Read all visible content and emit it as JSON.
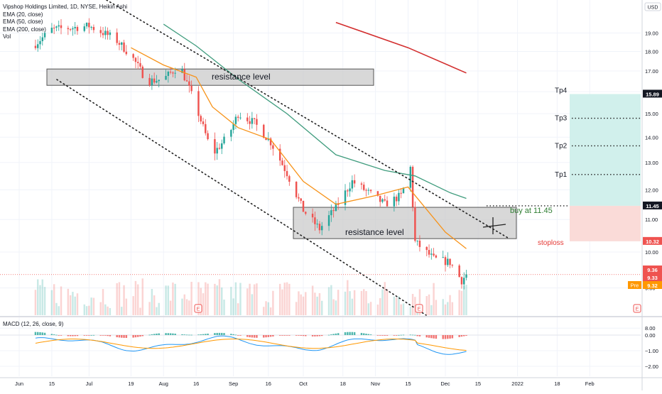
{
  "legend": {
    "title": "Vipshop Holdings Limited, 1D, NYSE, Heikin Ashi",
    "ema20": "EMA (20, close)",
    "ema50": "EMA (50, close)",
    "ema200": "EMA (200, close)",
    "vol": "Vol"
  },
  "macd_legend": "MACD (12, 26, close, 9)",
  "currency": "USD",
  "annotations": {
    "resistance_top": "resistance level",
    "resistance_bottom": "resistance level",
    "buy": "buy at  11.45",
    "stoploss": "stoploss",
    "tp1": "Tp1",
    "tp2": "Tp2",
    "tp3": "Tp3",
    "tp4": "Tp4"
  },
  "price_badges": {
    "tp4": "15.89",
    "buy": "11.45",
    "stop": "10.32",
    "last": "9.36",
    "prev": "9.33",
    "pre_label": "Pre",
    "pre": "9.32"
  },
  "earnings_marker": "E",
  "colors": {
    "up": "#26a69a",
    "down": "#ef5350",
    "ema20": "#f7931a",
    "ema50": "#3f9c7d",
    "ema200": "#d32f2f",
    "target_zone": "#d1f0ec",
    "stop_zone": "#fadbd8",
    "macd_line": "#2196f3",
    "signal_line": "#ff9800"
  },
  "chart_data": [
    {
      "type": "candlestick",
      "title": "Vipshop Holdings Limited, 1D, NYSE, Heikin Ashi",
      "x_ticks": [
        "Jun",
        "15",
        "Jul",
        "19",
        "Aug",
        "16",
        "Sep",
        "16",
        "Oct",
        "18",
        "Nov",
        "15",
        "Dec",
        "15",
        "2022",
        "18",
        "Feb"
      ],
      "y_ticks": [
        8.0,
        9.0,
        10.0,
        11.0,
        12.0,
        13.0,
        14.0,
        15.0,
        16.0,
        17.0,
        18.0,
        19.0
      ],
      "ylim": [
        7.5,
        19.6
      ],
      "y_scale": "log",
      "close_path": [
        {
          "date": "Jun 7",
          "close": 18.3
        },
        {
          "date": "Jun 15",
          "close": 19.2
        },
        {
          "date": "Jun 24",
          "close": 19.3
        },
        {
          "date": "Jul 1",
          "close": 19.4
        },
        {
          "date": "Jul 12",
          "close": 18.7
        },
        {
          "date": "Jul 19",
          "close": 17.8
        },
        {
          "date": "Jul 26",
          "close": 16.5
        },
        {
          "date": "Aug 2",
          "close": 16.6
        },
        {
          "date": "Aug 9",
          "close": 17.3
        },
        {
          "date": "Aug 16",
          "close": 15.3
        },
        {
          "date": "Aug 23",
          "close": 13.3
        },
        {
          "date": "Aug 30",
          "close": 14.1
        },
        {
          "date": "Sep 3",
          "close": 15.0
        },
        {
          "date": "Sep 10",
          "close": 14.6
        },
        {
          "date": "Sep 17",
          "close": 13.8
        },
        {
          "date": "Sep 24",
          "close": 12.6
        },
        {
          "date": "Oct 1",
          "close": 11.3
        },
        {
          "date": "Oct 8",
          "close": 10.7
        },
        {
          "date": "Oct 15",
          "close": 11.4
        },
        {
          "date": "Oct 22",
          "close": 12.3
        },
        {
          "date": "Oct 29",
          "close": 11.9
        },
        {
          "date": "Nov 5",
          "close": 11.5
        },
        {
          "date": "Nov 12",
          "close": 11.8
        },
        {
          "date": "Nov 16",
          "close": 12.8
        },
        {
          "date": "Nov 18",
          "close": 10.3
        },
        {
          "date": "Nov 26",
          "close": 9.8
        },
        {
          "date": "Dec 3",
          "close": 9.7
        },
        {
          "date": "Dec 8",
          "close": 9.2
        },
        {
          "date": "Dec 10",
          "close": 9.36
        }
      ],
      "ema20": [
        {
          "date": "Jul 19",
          "close": 18.2
        },
        {
          "date": "Aug 2",
          "close": 17.3
        },
        {
          "date": "Aug 16",
          "close": 16.7
        },
        {
          "date": "Aug 23",
          "close": 15.3
        },
        {
          "date": "Sep 3",
          "close": 14.4
        },
        {
          "date": "Sep 17",
          "close": 13.9
        },
        {
          "date": "Oct 1",
          "close": 12.3
        },
        {
          "date": "Oct 15",
          "close": 11.5
        },
        {
          "date": "Nov 1",
          "close": 11.8
        },
        {
          "date": "Nov 15",
          "close": 12.1
        },
        {
          "date": "Dec 1",
          "close": 10.6
        },
        {
          "date": "Dec 10",
          "close": 10.1
        }
      ],
      "ema50": [
        {
          "date": "Aug 2",
          "close": 19.5
        },
        {
          "date": "Aug 16",
          "close": 18.3
        },
        {
          "date": "Sep 3",
          "close": 16.6
        },
        {
          "date": "Sep 24",
          "close": 15.0
        },
        {
          "date": "Oct 15",
          "close": 13.3
        },
        {
          "date": "Nov 5",
          "close": 12.7
        },
        {
          "date": "Nov 18",
          "close": 12.5
        },
        {
          "date": "Dec 3",
          "close": 11.9
        },
        {
          "date": "Dec 10",
          "close": 11.7
        }
      ],
      "ema200": [
        {
          "date": "Oct 15",
          "close": 19.6
        },
        {
          "date": "Nov 15",
          "close": 18.2
        },
        {
          "date": "Dec 10",
          "close": 16.9
        }
      ],
      "levels": {
        "tp1": 12.55,
        "tp2": 13.65,
        "tp3": 14.8,
        "tp4": 15.89,
        "buy": 11.45,
        "stoploss": 10.32,
        "last": 9.36,
        "prev": 9.33,
        "pre": 9.32
      },
      "resistance_zones": [
        [
          16.3,
          17.1
        ],
        [
          10.4,
          11.4
        ]
      ]
    },
    {
      "type": "bar",
      "title": "MACD (12, 26, close, 9)",
      "y_ticks": [
        0.0,
        -1.0,
        -2.0
      ],
      "ylim": [
        -2.4,
        0.55
      ]
    }
  ]
}
